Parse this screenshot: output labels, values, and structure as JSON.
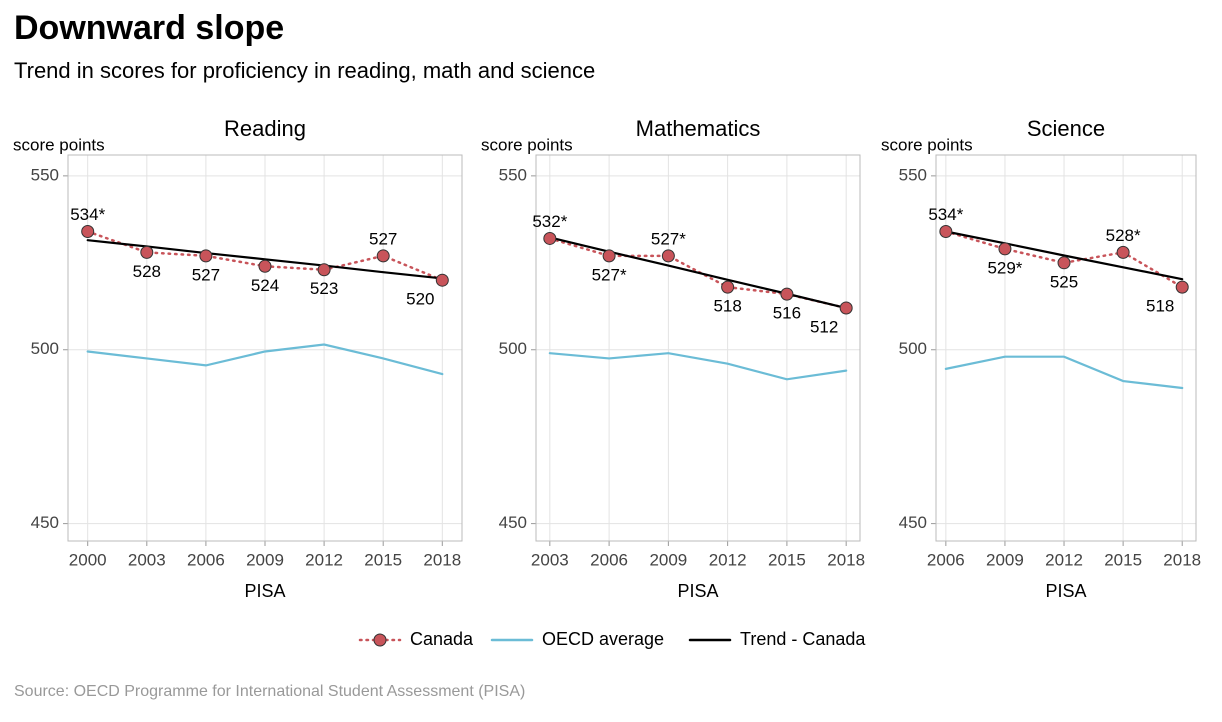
{
  "title": "Downward slope",
  "subtitle": "Trend in scores for proficiency in reading, math and science",
  "source": "Source: OECD Programme for International Student Assessment (PISA)",
  "chart_data": [
    {
      "type": "line",
      "title": "Reading",
      "y_label": "score points",
      "x_label": "PISA",
      "x": [
        2000,
        2003,
        2006,
        2009,
        2012,
        2015,
        2018
      ],
      "xlim": [
        1999,
        2019
      ],
      "xticks": [
        2000,
        2003,
        2006,
        2009,
        2012,
        2015,
        2018
      ],
      "ylim": [
        445,
        556
      ],
      "yticks": [
        450,
        500,
        550
      ],
      "grid": true,
      "series": [
        {
          "name": "Canada",
          "color": "#c8545a",
          "dash": "dotted",
          "markers": true,
          "values": [
            534,
            528,
            527,
            524,
            523,
            527,
            520
          ],
          "value_labels": [
            "534*",
            "528",
            "527",
            "524",
            "523",
            "527",
            "520"
          ]
        },
        {
          "name": "OECD average",
          "color": "#6bbcd6",
          "values": [
            499.5,
            497.5,
            495.5,
            499.5,
            501.5,
            497.5,
            493
          ]
        },
        {
          "name": "Trend - Canada",
          "color": "#000000",
          "values": [
            531.5,
            529.7,
            527.8,
            526,
            524.2,
            522.3,
            520.5
          ]
        }
      ]
    },
    {
      "type": "line",
      "title": "Mathematics",
      "y_label": "score points",
      "x_label": "PISA",
      "x": [
        2003,
        2006,
        2009,
        2012,
        2015,
        2018
      ],
      "xlim": [
        2002.3,
        2018.7
      ],
      "xticks": [
        2003,
        2006,
        2009,
        2012,
        2015,
        2018
      ],
      "ylim": [
        445,
        556
      ],
      "yticks": [
        450,
        500,
        550
      ],
      "grid": true,
      "series": [
        {
          "name": "Canada",
          "color": "#c8545a",
          "dash": "dotted",
          "markers": true,
          "values": [
            532,
            527,
            527,
            518,
            516,
            512
          ],
          "value_labels": [
            "532*",
            "527*",
            "527*",
            "518",
            "516",
            "512"
          ]
        },
        {
          "name": "OECD average",
          "color": "#6bbcd6",
          "values": [
            499,
            497.5,
            499,
            496,
            491.5,
            494
          ]
        },
        {
          "name": "Trend - Canada",
          "color": "#000000",
          "values": [
            532.3,
            528.2,
            524.2,
            520.1,
            516.1,
            512
          ]
        }
      ]
    },
    {
      "type": "line",
      "title": "Science",
      "y_label": "score points",
      "x_label": "PISA",
      "x": [
        2006,
        2009,
        2012,
        2015,
        2018
      ],
      "xlim": [
        2005.5,
        2018.7
      ],
      "xticks": [
        2006,
        2009,
        2012,
        2015,
        2018
      ],
      "ylim": [
        445,
        556
      ],
      "yticks": [
        450,
        500,
        550
      ],
      "grid": true,
      "series": [
        {
          "name": "Canada",
          "color": "#c8545a",
          "dash": "dotted",
          "markers": true,
          "values": [
            534,
            529,
            525,
            528,
            518
          ],
          "value_labels": [
            "534*",
            "529*",
            "525",
            "528*",
            "518"
          ]
        },
        {
          "name": "OECD average",
          "color": "#6bbcd6",
          "values": [
            494.5,
            498,
            498,
            491,
            489
          ]
        },
        {
          "name": "Trend - Canada",
          "color": "#000000",
          "values": [
            534,
            530.6,
            527.1,
            523.7,
            520.3
          ]
        }
      ]
    }
  ]
}
